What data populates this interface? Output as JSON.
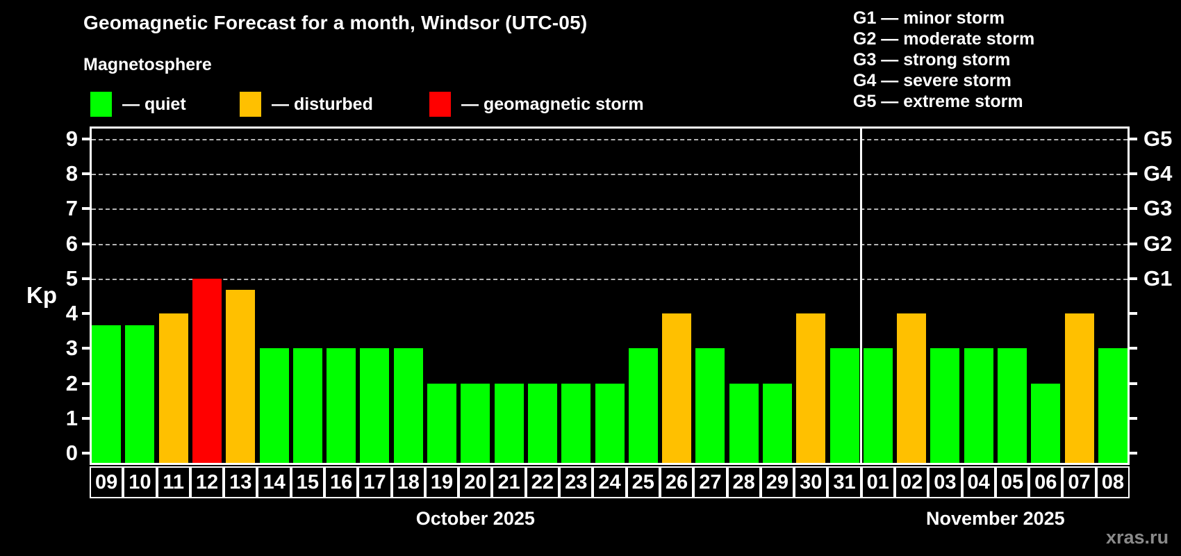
{
  "header": {
    "title": "Geomagnetic Forecast for a month, Windsor (UTC-05)",
    "subtitle": "Magnetosphere"
  },
  "legend": {
    "items": [
      {
        "status": "quiet",
        "label": "— quiet",
        "color": "#00ff00"
      },
      {
        "status": "disturbed",
        "label": "— disturbed",
        "color": "#ffc000"
      },
      {
        "status": "storm",
        "label": "— geomagnetic storm",
        "color": "#ff0000"
      }
    ]
  },
  "storm_scale_legend": {
    "items": [
      "G1 — minor storm",
      "G2 — moderate storm",
      "G3 — strong storm",
      "G4 — severe storm",
      "G5 — extreme storm"
    ]
  },
  "chart_data": {
    "type": "bar",
    "title": "Geomagnetic Forecast for a month, Windsor (UTC-05)",
    "ylabel": "Kp",
    "ylim": [
      0,
      9
    ],
    "yticks": [
      0,
      1,
      2,
      3,
      4,
      5,
      6,
      7,
      8,
      9
    ],
    "gridlines_at": [
      5,
      6,
      7,
      8,
      9
    ],
    "grid": "dashed, horizontal only at G-storm levels",
    "legend_position": "top-left",
    "right_axis_labels": [
      {
        "kp": 5,
        "label": "G1"
      },
      {
        "kp": 6,
        "label": "G2"
      },
      {
        "kp": 7,
        "label": "G3"
      },
      {
        "kp": 8,
        "label": "G4"
      },
      {
        "kp": 9,
        "label": "G5"
      }
    ],
    "status_colors": {
      "quiet": "#00ff00",
      "disturbed": "#ffc000",
      "storm": "#ff0000"
    },
    "months": [
      {
        "label": "October 2025",
        "days": 23
      },
      {
        "label": "November 2025",
        "days": 8
      }
    ],
    "days": [
      {
        "day": "09",
        "kp": 3.67,
        "status": "quiet"
      },
      {
        "day": "10",
        "kp": 3.67,
        "status": "quiet"
      },
      {
        "day": "11",
        "kp": 4.0,
        "status": "disturbed"
      },
      {
        "day": "12",
        "kp": 5.0,
        "status": "storm"
      },
      {
        "day": "13",
        "kp": 4.67,
        "status": "disturbed"
      },
      {
        "day": "14",
        "kp": 3.0,
        "status": "quiet"
      },
      {
        "day": "15",
        "kp": 3.0,
        "status": "quiet"
      },
      {
        "day": "16",
        "kp": 3.0,
        "status": "quiet"
      },
      {
        "day": "17",
        "kp": 3.0,
        "status": "quiet"
      },
      {
        "day": "18",
        "kp": 3.0,
        "status": "quiet"
      },
      {
        "day": "19",
        "kp": 2.0,
        "status": "quiet"
      },
      {
        "day": "20",
        "kp": 2.0,
        "status": "quiet"
      },
      {
        "day": "21",
        "kp": 2.0,
        "status": "quiet"
      },
      {
        "day": "22",
        "kp": 2.0,
        "status": "quiet"
      },
      {
        "day": "23",
        "kp": 2.0,
        "status": "quiet"
      },
      {
        "day": "24",
        "kp": 2.0,
        "status": "quiet"
      },
      {
        "day": "25",
        "kp": 3.0,
        "status": "quiet"
      },
      {
        "day": "26",
        "kp": 4.0,
        "status": "disturbed"
      },
      {
        "day": "27",
        "kp": 3.0,
        "status": "quiet"
      },
      {
        "day": "28",
        "kp": 2.0,
        "status": "quiet"
      },
      {
        "day": "29",
        "kp": 2.0,
        "status": "quiet"
      },
      {
        "day": "30",
        "kp": 4.0,
        "status": "disturbed"
      },
      {
        "day": "31",
        "kp": 3.0,
        "status": "quiet"
      },
      {
        "day": "01",
        "kp": 3.0,
        "status": "quiet"
      },
      {
        "day": "02",
        "kp": 4.0,
        "status": "disturbed"
      },
      {
        "day": "03",
        "kp": 3.0,
        "status": "quiet"
      },
      {
        "day": "04",
        "kp": 3.0,
        "status": "quiet"
      },
      {
        "day": "05",
        "kp": 3.0,
        "status": "quiet"
      },
      {
        "day": "06",
        "kp": 2.0,
        "status": "quiet"
      },
      {
        "day": "07",
        "kp": 4.0,
        "status": "disturbed"
      },
      {
        "day": "08",
        "kp": 3.0,
        "status": "quiet"
      }
    ]
  },
  "watermark": "xras.ru"
}
